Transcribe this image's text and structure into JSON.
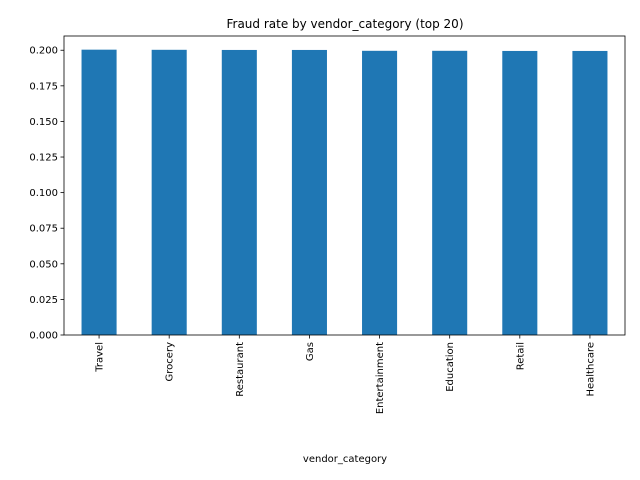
{
  "chart_data": {
    "type": "bar",
    "title": "Fraud rate by vendor_category (top 20)",
    "xlabel": "vendor_category",
    "ylabel": "",
    "categories": [
      "Travel",
      "Grocery",
      "Restaurant",
      "Gas",
      "Entertainment",
      "Education",
      "Retail",
      "Healthcare"
    ],
    "values": [
      0.2004,
      0.2003,
      0.2002,
      0.2002,
      0.1996,
      0.1996,
      0.1995,
      0.1995
    ],
    "ylim": [
      0,
      0.21
    ],
    "yticks": [
      "0.000",
      "0.025",
      "0.050",
      "0.075",
      "0.100",
      "0.125",
      "0.150",
      "0.175",
      "0.200"
    ],
    "ytick_values": [
      0,
      0.025,
      0.05,
      0.075,
      0.1,
      0.125,
      0.15,
      0.175,
      0.2
    ],
    "grid": false,
    "bar_color": "#1f77b4"
  }
}
